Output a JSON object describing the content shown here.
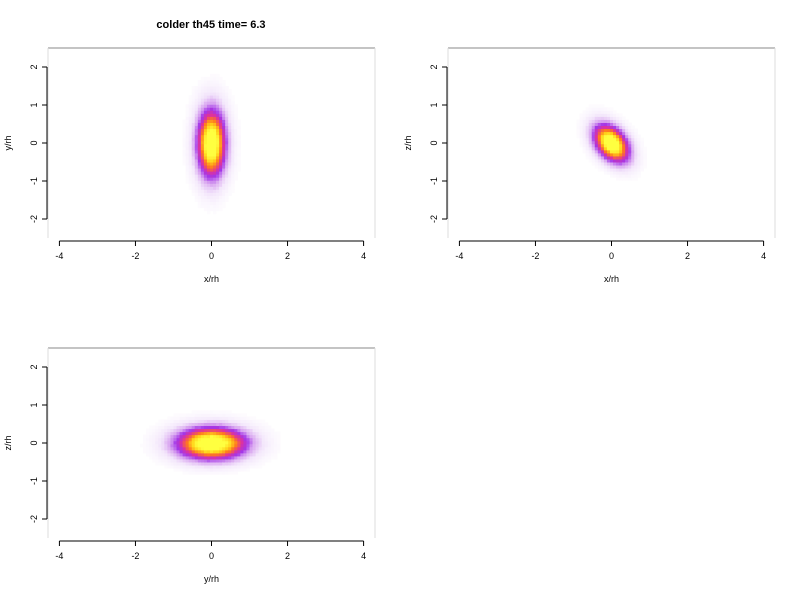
{
  "figure_title": "colder th45 time= 6.3",
  "chart_data": [
    {
      "type": "heatmap",
      "title": "colder th45 time= 6.3",
      "xlabel": "x/rh",
      "ylabel": "y/rh",
      "xlim": [
        -4.3,
        4.3
      ],
      "ylim": [
        -2.5,
        2.5
      ],
      "xticks": [
        "-4",
        "-2",
        "0",
        "2",
        "4"
      ],
      "yticks": [
        "-2",
        "-1",
        "0",
        "1",
        "2"
      ],
      "grid": false,
      "distribution": {
        "center": [
          0,
          0
        ],
        "sigma": [
          0.26,
          0.62
        ],
        "rotation_deg": 0,
        "halo_scale": 2.2
      }
    },
    {
      "type": "heatmap",
      "title": "",
      "xlabel": "x/rh",
      "ylabel": "z/rh",
      "xlim": [
        -4.3,
        4.3
      ],
      "ylim": [
        -2.5,
        2.5
      ],
      "xticks": [
        "-4",
        "-2",
        "0",
        "2",
        "4"
      ],
      "yticks": [
        "-2",
        "-1",
        "0",
        "1",
        "2"
      ],
      "grid": false,
      "distribution": {
        "center": [
          0,
          0
        ],
        "sigma": [
          0.26,
          0.4
        ],
        "rotation_deg": 40,
        "halo_scale": 2.0
      }
    },
    {
      "type": "heatmap",
      "title": "",
      "xlabel": "y/rh",
      "ylabel": "z/rh",
      "xlim": [
        -4.3,
        4.3
      ],
      "ylim": [
        -2.5,
        2.5
      ],
      "xticks": [
        "-4",
        "-2",
        "0",
        "2",
        "4"
      ],
      "yticks": [
        "-2",
        "-1",
        "0",
        "1",
        "2"
      ],
      "grid": false,
      "distribution": {
        "center": [
          0,
          0
        ],
        "sigma": [
          0.65,
          0.3
        ],
        "rotation_deg": 0,
        "halo_scale": 2.0
      }
    }
  ],
  "colors": {
    "colormap": [
      "#ffffff",
      "#f3e6fb",
      "#d9a6f0",
      "#a436e8",
      "#e0329a",
      "#ff7a1e",
      "#ffd21a",
      "#ffff40"
    ],
    "axis": "#000000",
    "frame": "#888888"
  }
}
